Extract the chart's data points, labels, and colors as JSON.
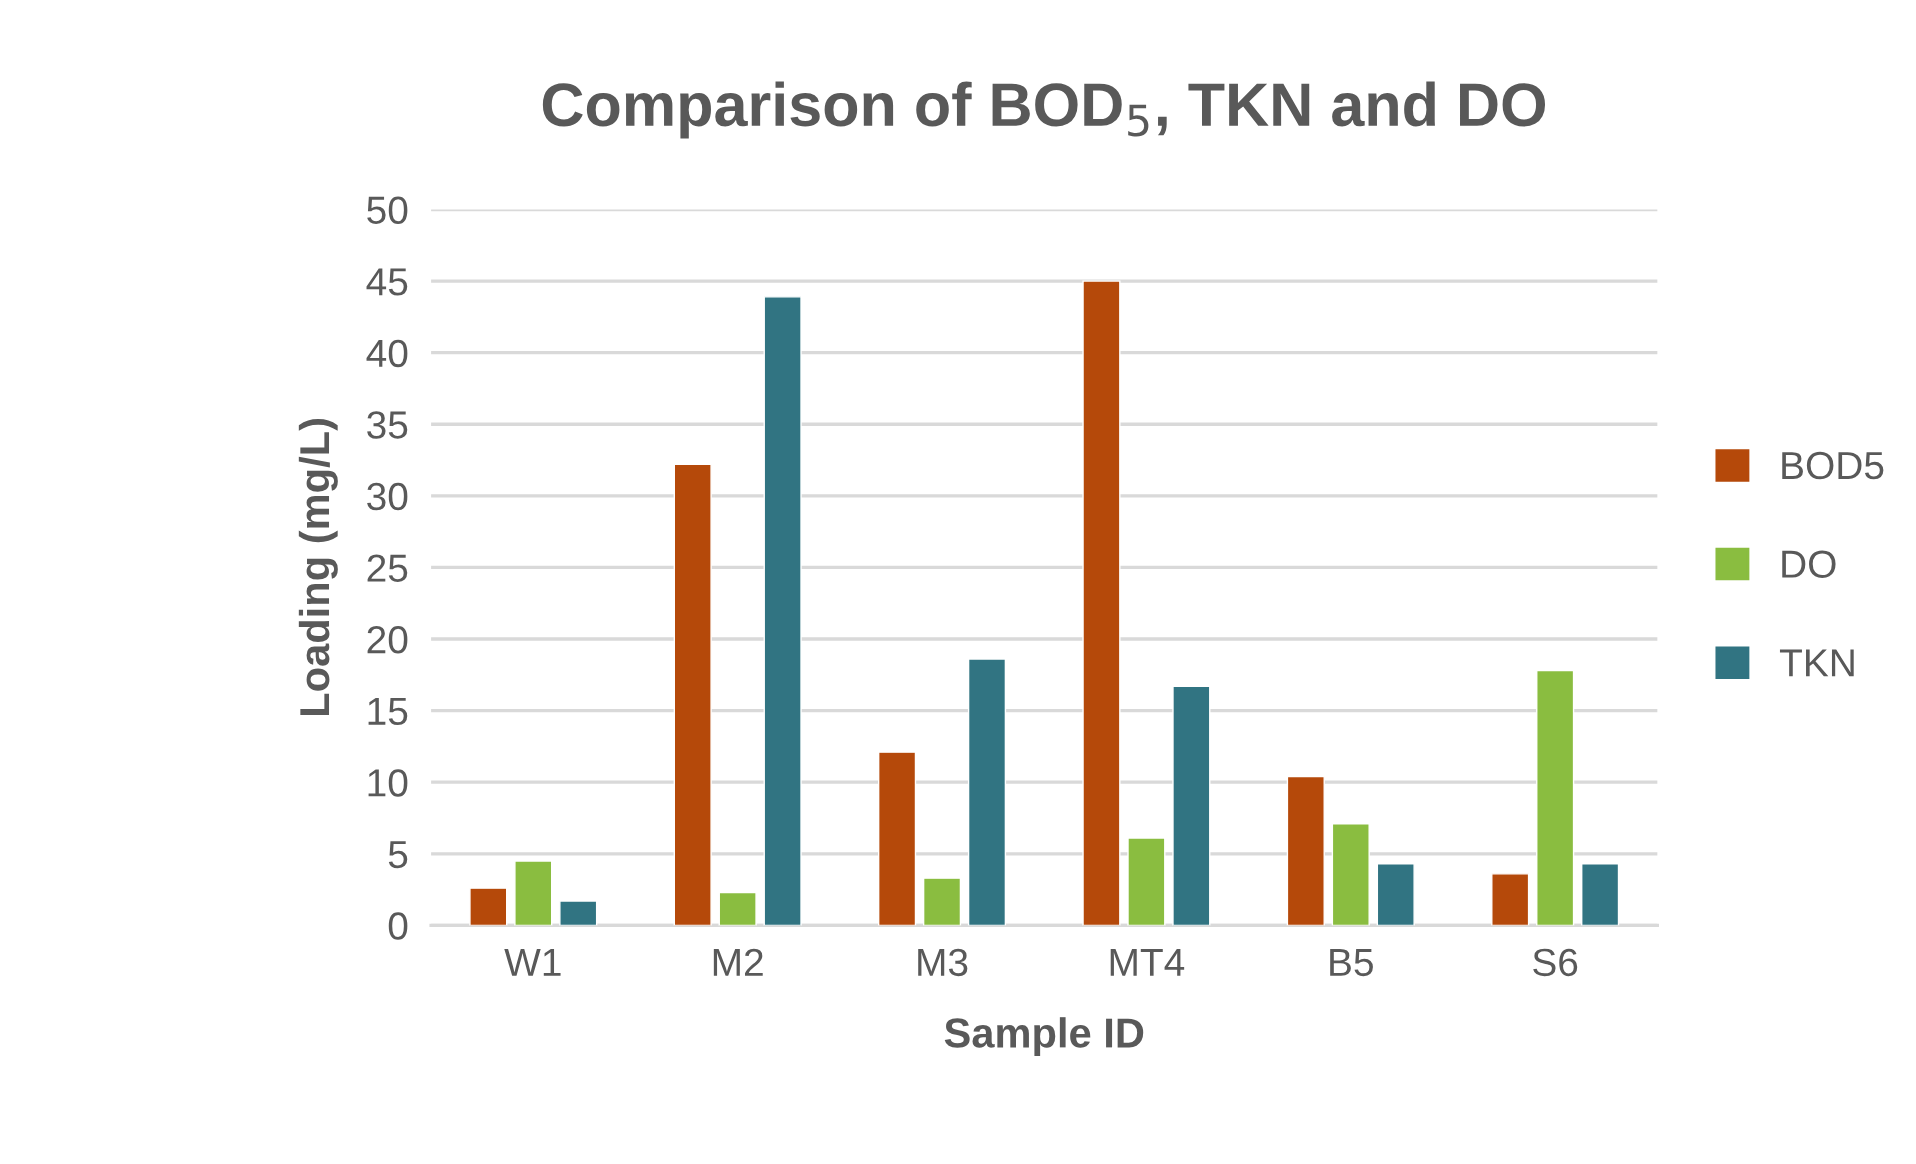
{
  "chart_data": {
    "type": "bar",
    "title": "Comparison of BOD$_{5}$, TKN and DO",
    "xlabel": "Sample ID",
    "ylabel": "Loading (mg/L)",
    "categories": [
      "W1",
      "M2",
      "M3",
      "MT4",
      "B5",
      "S6"
    ],
    "series": [
      {
        "name": "BOD5",
        "color": "#b5490a",
        "values": [
          2.6,
          32.2,
          12.1,
          45.0,
          10.4,
          3.6
        ]
      },
      {
        "name": "DO",
        "color": "#8abd40",
        "values": [
          4.5,
          2.3,
          3.3,
          6.1,
          7.1,
          17.8
        ]
      },
      {
        "name": "TKN",
        "color": "#317482",
        "values": [
          1.7,
          43.9,
          18.6,
          16.7,
          4.3,
          4.3
        ]
      }
    ],
    "ylim": [
      0,
      50
    ],
    "yticks": [
      0,
      5,
      10,
      15,
      20,
      25,
      30,
      35,
      40,
      45,
      50
    ],
    "grid": "y",
    "legend": "right"
  }
}
